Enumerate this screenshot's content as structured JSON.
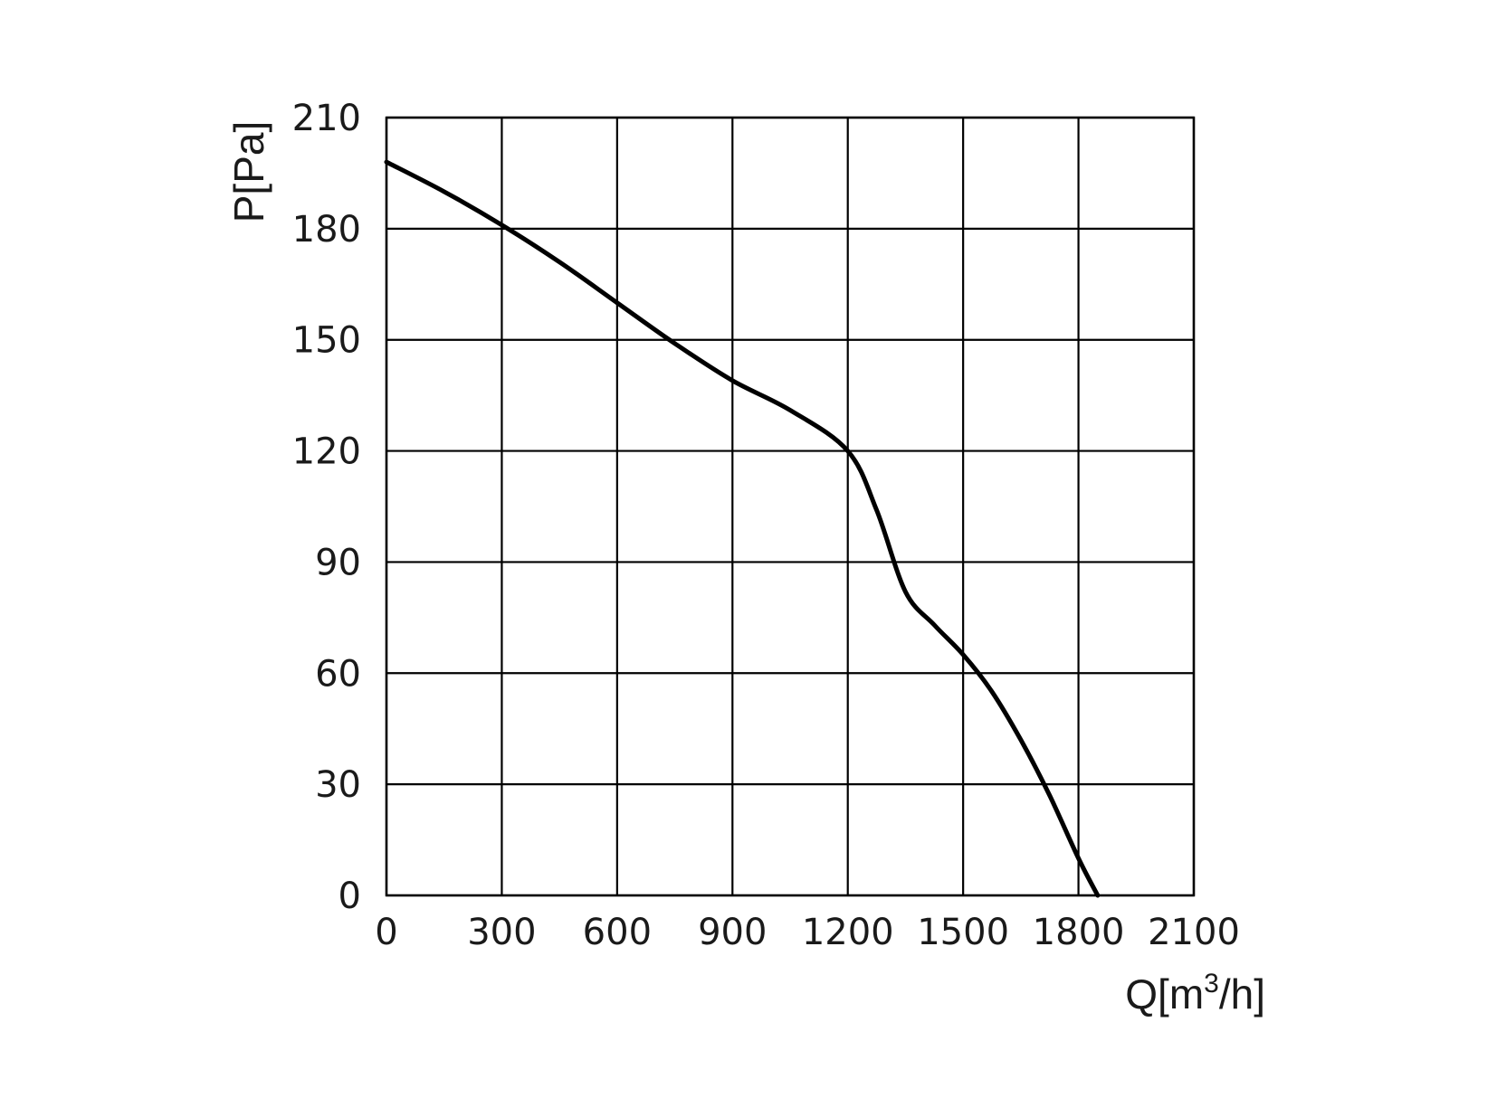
{
  "chart_data": {
    "type": "line",
    "title": "",
    "xlabel": {
      "prefix": "Q[m",
      "superscript": "3",
      "suffix": "/h]"
    },
    "ylabel": "P[Pa]",
    "xlim": [
      0,
      2100
    ],
    "ylim": [
      0,
      210
    ],
    "xticks": [
      0,
      300,
      600,
      900,
      1200,
      1500,
      1800,
      2100
    ],
    "yticks": [
      0,
      30,
      60,
      90,
      120,
      150,
      180,
      210
    ],
    "grid": true,
    "legend": "none",
    "series": [
      {
        "color": "#000000",
        "x": [
          0,
          150,
          300,
          450,
          600,
          750,
          900,
          1050,
          1200,
          1275,
          1350,
          1425,
          1500,
          1575,
          1650,
          1725,
          1800,
          1850
        ],
        "y": [
          198,
          190,
          181,
          171,
          160,
          149,
          139,
          131,
          120,
          104,
          82,
          73,
          65,
          55,
          42,
          27,
          10,
          0
        ]
      }
    ]
  }
}
